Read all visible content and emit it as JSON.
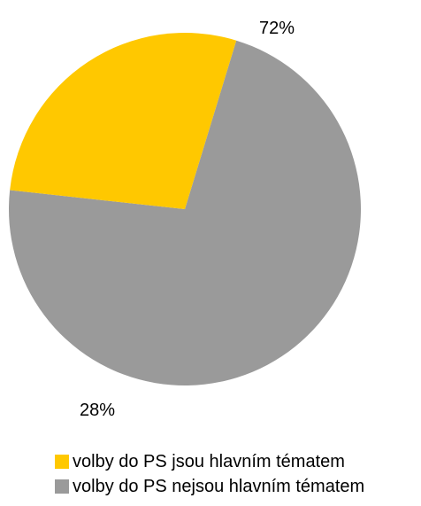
{
  "chart_data": {
    "type": "pie",
    "title": "",
    "slices": [
      {
        "name": "volby do PS nejsou hlavním tématem",
        "value": 72,
        "label": "72%",
        "color": "#9a9a9a"
      },
      {
        "name": "volby do PS jsou hlavním tématem",
        "value": 28,
        "label": "28%",
        "color": "#ffc800"
      }
    ],
    "legend": {
      "position": "bottom",
      "entries": [
        {
          "label": "volby do PS jsou hlavním tématem",
          "color": "#ffc800"
        },
        {
          "label": "volby do PS nejsou hlavním tématem",
          "color": "#9a9a9a"
        }
      ]
    }
  }
}
